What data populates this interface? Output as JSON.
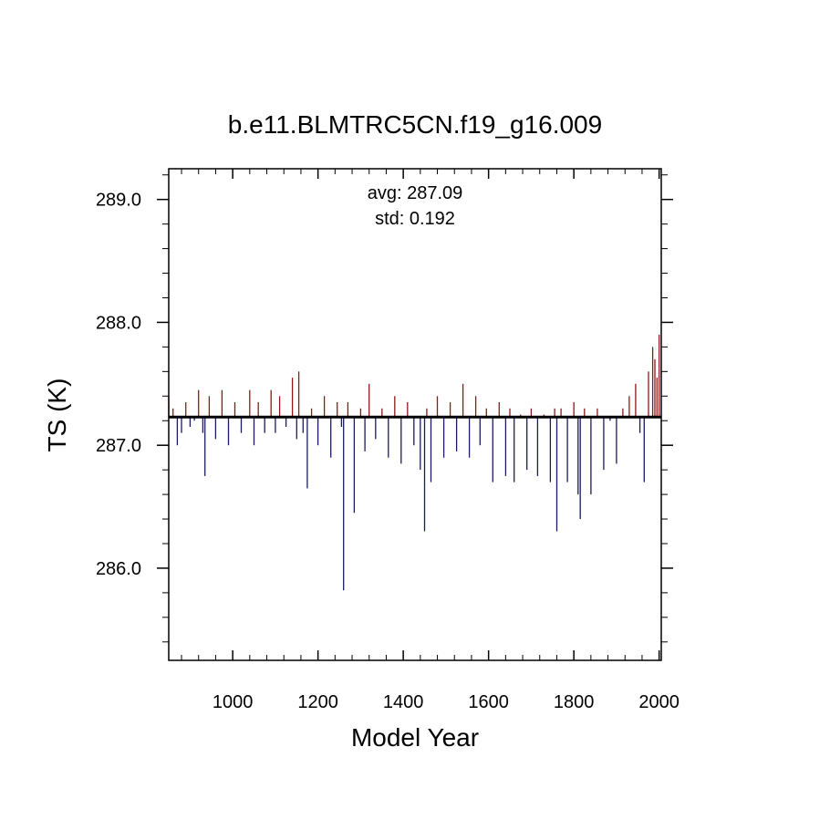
{
  "chart_data": {
    "type": "bar",
    "title": "b.e11.BLMTRC5CN.f19_g16.009",
    "xlabel": "Model Year",
    "ylabel": "TS (K)",
    "xlim": [
      850,
      2005
    ],
    "ylim": [
      285.25,
      289.25
    ],
    "baseline": 287.23,
    "x_ticks": [
      1000,
      1200,
      1400,
      1600,
      1800,
      2000
    ],
    "x_tick_labels": [
      "1000",
      "1200",
      "1400",
      "1600",
      "1800",
      "2000"
    ],
    "y_ticks": [
      286.0,
      287.0,
      288.0,
      289.0
    ],
    "y_tick_labels": [
      "286.0",
      "287.0",
      "288.0",
      "289.0"
    ],
    "annotations": {
      "avg": "avg: 287.09",
      "std": "std:  0.192"
    },
    "colors": {
      "above": "#8b1a1a",
      "below": "#1a1a5e",
      "axis": "#000000"
    },
    "grid": false,
    "series": [
      {
        "x": [
          850,
          860,
          870,
          880,
          890,
          900,
          910,
          920,
          930,
          935,
          945,
          960,
          975,
          990,
          1005,
          1020,
          1040,
          1050,
          1060,
          1075,
          1090,
          1100,
          1110,
          1125,
          1140,
          1150,
          1155,
          1165,
          1175,
          1185,
          1200,
          1215,
          1230,
          1245,
          1255,
          1260,
          1270,
          1285,
          1300,
          1310,
          1320,
          1335,
          1350,
          1365,
          1380,
          1395,
          1410,
          1425,
          1440,
          1450,
          1455,
          1465,
          1480,
          1495,
          1510,
          1525,
          1540,
          1555,
          1570,
          1580,
          1595,
          1610,
          1625,
          1640,
          1650,
          1660,
          1675,
          1690,
          1700,
          1715,
          1730,
          1745,
          1755,
          1760,
          1770,
          1785,
          1800,
          1810,
          1815,
          1825,
          1840,
          1855,
          1870,
          1885,
          1900,
          1915,
          1930,
          1945,
          1955,
          1965,
          1975,
          1985,
          1990,
          1995,
          2000
        ],
        "values": [
          287.4,
          287.3,
          287.0,
          287.1,
          287.35,
          287.15,
          287.2,
          287.45,
          287.1,
          286.75,
          287.4,
          287.05,
          287.45,
          287.0,
          287.35,
          287.1,
          287.45,
          287.0,
          287.35,
          287.1,
          287.45,
          287.1,
          287.4,
          287.15,
          287.55,
          287.05,
          287.6,
          287.1,
          286.65,
          287.3,
          287.0,
          287.4,
          286.9,
          287.35,
          287.15,
          285.82,
          287.35,
          286.45,
          287.3,
          286.95,
          287.5,
          287.05,
          287.3,
          286.9,
          287.4,
          286.85,
          287.35,
          287.0,
          286.8,
          286.3,
          287.3,
          286.7,
          287.4,
          286.9,
          287.35,
          286.95,
          287.5,
          286.9,
          287.4,
          287.0,
          287.3,
          286.7,
          287.35,
          286.75,
          287.3,
          286.7,
          287.25,
          286.8,
          287.3,
          286.75,
          287.25,
          286.7,
          287.3,
          286.3,
          287.3,
          286.7,
          287.35,
          286.6,
          286.4,
          287.3,
          286.6,
          287.3,
          286.8,
          287.2,
          286.85,
          287.3,
          287.4,
          287.5,
          287.1,
          286.7,
          287.6,
          287.8,
          287.7,
          287.55,
          287.9
        ]
      }
    ]
  }
}
